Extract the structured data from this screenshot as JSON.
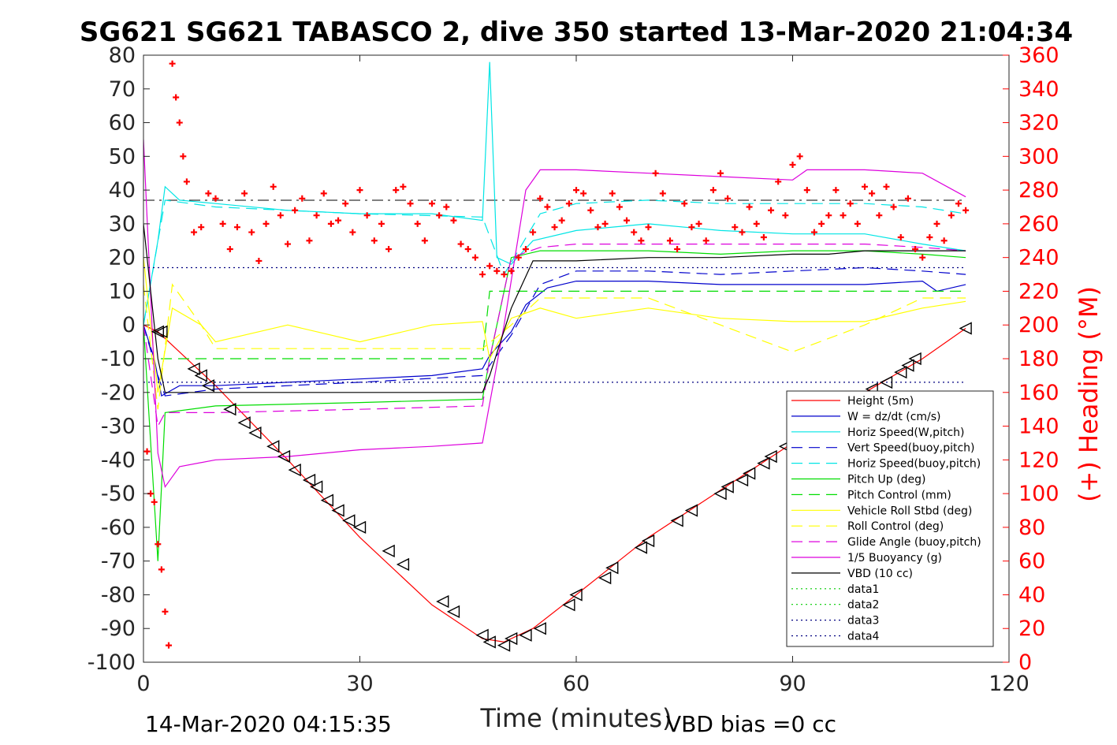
{
  "title": "SG621 SG621 TABASCO 2, dive 350 started 13-Mar-2020 21:04:34",
  "footer_left": "14-Mar-2020 04:15:35",
  "footer_right": "VBD bias =0 cc",
  "chart_data": {
    "type": "line",
    "title": "SG621 SG621 TABASCO 2, dive 350 started 13-Mar-2020 21:04:34",
    "xlabel": "Time (minutes)",
    "ylabel": "",
    "y2label": "(+) Heading (°M)",
    "xlim": [
      0,
      120
    ],
    "ylim": [
      -100,
      80
    ],
    "y2lim": [
      0,
      360
    ],
    "x_ticks": [
      "0",
      "30",
      "60",
      "90",
      "120"
    ],
    "y_ticks": [
      "80",
      "70",
      "60",
      "50",
      "40",
      "30",
      "20",
      "10",
      "0",
      "-10",
      "-20",
      "-30",
      "-40",
      "-50",
      "-60",
      "-70",
      "-80",
      "-90",
      "-100"
    ],
    "y2_ticks": [
      "360",
      "340",
      "320",
      "300",
      "280",
      "260",
      "240",
      "220",
      "200",
      "180",
      "160",
      "140",
      "120",
      "100",
      "80",
      "60",
      "40",
      "20",
      "0"
    ],
    "legend_position": "bottom-right",
    "series": [
      {
        "name": "Height (5m)",
        "color": "#ff0000",
        "style": "solid",
        "x": [
          0,
          2,
          10,
          20,
          30,
          40,
          47,
          50,
          54,
          60,
          70,
          80,
          90,
          100,
          108,
          114
        ],
        "y": [
          0,
          -2,
          -18,
          -40,
          -63,
          -83,
          -93,
          -94,
          -90,
          -80,
          -63,
          -49,
          -35,
          -20,
          -10,
          -1
        ]
      },
      {
        "name": "W = dz/dt (cm/s)",
        "color": "#0000cc",
        "style": "solid",
        "x": [
          0,
          1.5,
          2.5,
          5,
          10,
          20,
          30,
          40,
          47,
          48,
          51,
          53,
          56,
          60,
          70,
          80,
          90,
          100,
          108,
          110,
          114
        ],
        "y": [
          0,
          -10,
          -21,
          -18,
          -18,
          -17,
          -16,
          -15,
          -13,
          -9,
          -2,
          6,
          11,
          13,
          13,
          12,
          12,
          12,
          13,
          10,
          12
        ]
      },
      {
        "name": "Horiz Speed(W,pitch)",
        "color": "#00e5e5",
        "style": "solid",
        "x": [
          0,
          2,
          3,
          5,
          10,
          20,
          30,
          40,
          47,
          48,
          49,
          51,
          54,
          60,
          70,
          80,
          90,
          100,
          108,
          114
        ],
        "y": [
          0,
          25,
          41,
          37,
          36,
          34,
          33,
          33,
          31,
          78,
          20,
          18,
          25,
          28,
          30,
          28,
          27,
          27,
          24,
          22
        ]
      },
      {
        "name": "Vert Speed(buoy,pitch)",
        "color": "#0000cc",
        "style": "dashed",
        "x": [
          0,
          2,
          3,
          10,
          30,
          47,
          51,
          55,
          60,
          70,
          80,
          90,
          100,
          108,
          114
        ],
        "y": [
          0,
          -15,
          -21,
          -19,
          -17,
          -15,
          -3,
          12,
          16,
          16,
          15,
          16,
          17,
          16,
          15
        ]
      },
      {
        "name": "Horiz Speed(buoy,pitch)",
        "color": "#00e5e5",
        "style": "dashed",
        "x": [
          0,
          3,
          10,
          30,
          47,
          50,
          55,
          60,
          70,
          80,
          90,
          100,
          108,
          114
        ],
        "y": [
          0,
          37,
          35,
          33,
          32,
          15,
          33,
          36,
          37,
          36,
          36,
          36,
          35,
          33
        ]
      },
      {
        "name": "Pitch Up (deg)",
        "color": "#00dd00",
        "style": "solid",
        "x": [
          0,
          2,
          3,
          10,
          30,
          47,
          48,
          51,
          55,
          60,
          70,
          80,
          90,
          100,
          108,
          114
        ],
        "y": [
          0,
          -70,
          -26,
          -24,
          -23,
          -22,
          -10,
          20,
          22,
          22,
          22,
          21,
          22,
          22,
          21,
          20
        ]
      },
      {
        "name": "Pitch Control (mm)",
        "color": "#00dd00",
        "style": "dashed",
        "x": [
          0,
          2,
          47,
          48,
          55,
          114
        ],
        "y": [
          -10,
          -10,
          -10,
          10,
          10,
          10
        ]
      },
      {
        "name": "Vehicle Roll Stbd (deg)",
        "color": "#ffff00",
        "style": "solid",
        "x": [
          0,
          2,
          4,
          8,
          10,
          20,
          30,
          40,
          47,
          48,
          51,
          55,
          60,
          70,
          80,
          90,
          100,
          108,
          114
        ],
        "y": [
          20,
          -20,
          5,
          0,
          -5,
          0,
          -5,
          0,
          1,
          -10,
          2,
          5,
          2,
          5,
          2,
          1,
          1,
          5,
          7
        ]
      },
      {
        "name": "Roll Control (deg)",
        "color": "#ffff00",
        "style": "dashed",
        "x": [
          0,
          2,
          4,
          8,
          10,
          30,
          47,
          51,
          55,
          60,
          70,
          80,
          90,
          100,
          108,
          114
        ],
        "y": [
          12,
          -25,
          12,
          0,
          -7,
          -7,
          -7,
          0,
          8,
          8,
          8,
          0,
          -8,
          0,
          8,
          8
        ]
      },
      {
        "name": "Glide Angle (buoy,pitch)",
        "color": "#dd00dd",
        "style": "dashed",
        "x": [
          0,
          2,
          3,
          10,
          30,
          47,
          48,
          51,
          55,
          60,
          70,
          80,
          90,
          100,
          108,
          114
        ],
        "y": [
          0,
          -30,
          -26,
          -26,
          -25,
          -24,
          -10,
          20,
          23,
          24,
          24,
          24,
          24,
          24,
          23,
          22
        ]
      },
      {
        "name": "1/5 Buoyancy (g)",
        "color": "#dd00dd",
        "style": "solid",
        "x": [
          0,
          2,
          3,
          5,
          10,
          20,
          30,
          40,
          47,
          50,
          53,
          55,
          60,
          70,
          80,
          90,
          92,
          100,
          108,
          114
        ],
        "y": [
          55,
          -38,
          -48,
          -42,
          -40,
          -39,
          -37,
          -36,
          -35,
          0,
          40,
          46,
          46,
          45,
          44,
          43,
          46,
          46,
          45,
          38
        ]
      },
      {
        "name": "VBD (10 cc)",
        "color": "#000000",
        "style": "solid",
        "x": [
          0,
          2,
          3,
          10,
          30,
          47,
          48,
          51,
          54,
          60,
          70,
          80,
          90,
          95,
          100,
          108,
          114
        ],
        "y": [
          30,
          -10,
          -20,
          -20,
          -20,
          -20,
          -15,
          5,
          19,
          19,
          20,
          20,
          21,
          21,
          22,
          22,
          22
        ]
      },
      {
        "name": "data1",
        "color": "#00cc00",
        "style": "dotted",
        "x": [],
        "y": []
      },
      {
        "name": "data2",
        "color": "#00cc00",
        "style": "dotted",
        "x": [],
        "y": []
      },
      {
        "name": "data3",
        "color": "#000080",
        "style": "dotted",
        "x": [
          0,
          114
        ],
        "y": [
          17,
          17
        ]
      },
      {
        "name": "data4",
        "color": "#000080",
        "style": "dotted",
        "x": [
          0,
          114
        ],
        "y": [
          -17,
          -17
        ]
      }
    ],
    "reference_lines": [
      {
        "color": "#000000",
        "style": "dashdot",
        "y": 37,
        "x": [
          0,
          114
        ]
      }
    ],
    "heading": {
      "name": "(+) Heading (°M)",
      "color": "#ff0000",
      "axis": "right",
      "x": [
        0.5,
        1,
        1.5,
        2,
        2.5,
        3,
        3.5,
        4,
        4.5,
        5,
        5.5,
        6,
        7,
        8,
        9,
        10,
        11,
        12,
        13,
        14,
        15,
        16,
        17,
        18,
        19,
        20,
        21,
        22,
        23,
        24,
        25,
        26,
        27,
        28,
        29,
        30,
        31,
        32,
        33,
        34,
        35,
        36,
        37,
        38,
        39,
        40,
        41,
        42,
        43,
        44,
        45,
        46,
        47,
        48,
        49,
        50,
        51,
        52,
        53,
        54,
        55,
        56,
        57,
        58,
        59,
        60,
        61,
        62,
        63,
        64,
        65,
        66,
        67,
        68,
        69,
        70,
        71,
        72,
        73,
        74,
        75,
        76,
        77,
        78,
        79,
        80,
        81,
        82,
        83,
        84,
        85,
        86,
        87,
        88,
        89,
        90,
        91,
        92,
        93,
        94,
        95,
        96,
        97,
        98,
        99,
        100,
        101,
        102,
        103,
        104,
        105,
        106,
        107,
        108,
        109,
        110,
        111,
        112,
        113,
        114
      ],
      "y": [
        125,
        100,
        95,
        70,
        55,
        30,
        10,
        355,
        335,
        320,
        300,
        285,
        255,
        258,
        278,
        275,
        260,
        245,
        258,
        278,
        255,
        238,
        260,
        282,
        265,
        248,
        268,
        275,
        250,
        265,
        278,
        260,
        262,
        272,
        255,
        280,
        265,
        250,
        260,
        245,
        280,
        282,
        272,
        260,
        250,
        272,
        265,
        270,
        262,
        248,
        245,
        240,
        230,
        235,
        232,
        230,
        232,
        240,
        245,
        255,
        275,
        270,
        258,
        262,
        272,
        280,
        278,
        268,
        258,
        260,
        278,
        270,
        262,
        255,
        250,
        258,
        290,
        278,
        250,
        245,
        272,
        258,
        260,
        250,
        280,
        290,
        275,
        258,
        255,
        270,
        260,
        252,
        268,
        285,
        265,
        295,
        300,
        280,
        255,
        260,
        265,
        280,
        265,
        272,
        260,
        282,
        278,
        265,
        282,
        270,
        252,
        275,
        245,
        240,
        252,
        260,
        250,
        265,
        272,
        268
      ]
    },
    "depth_markers": {
      "name": "Height (5m) markers",
      "color": "#000000",
      "x": [
        2,
        2.5,
        7,
        8,
        9,
        12,
        14,
        15.5,
        18,
        19.5,
        21,
        23,
        24,
        25.5,
        27,
        28.5,
        30,
        34,
        36,
        41.5,
        43,
        47,
        48,
        50,
        51,
        53,
        55,
        59,
        60,
        64,
        65,
        69,
        70,
        74,
        76,
        80,
        81,
        83,
        84,
        86,
        87,
        89,
        91,
        93,
        95,
        97,
        99,
        101,
        103,
        105,
        106,
        107,
        114
      ],
      "y": [
        -2,
        -2,
        -13,
        -15,
        -18,
        -25,
        -29,
        -32,
        -36,
        -39,
        -43,
        -46,
        -48,
        -52,
        -55,
        -58,
        -60,
        -67,
        -71,
        -82,
        -85,
        -92,
        -94,
        -95,
        -93,
        -92,
        -90,
        -83,
        -80,
        -75,
        -72,
        -66,
        -64,
        -58,
        -55,
        -50,
        -48,
        -46,
        -44,
        -41,
        -39,
        -36,
        -34,
        -31,
        -28,
        -25,
        -22,
        -19,
        -17,
        -14,
        -12,
        -10,
        -1
      ]
    }
  }
}
